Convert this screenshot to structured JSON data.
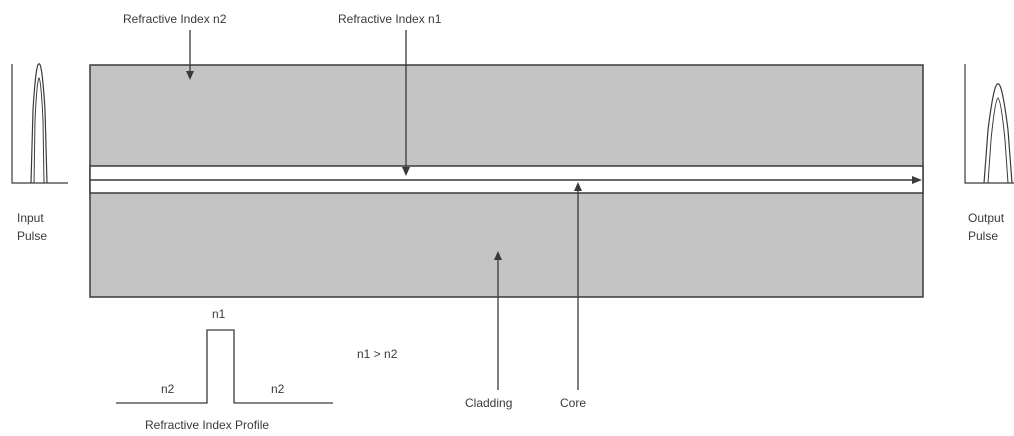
{
  "labels": {
    "refractive_index_n2": "Refractive Index n2",
    "refractive_index_n1": "Refractive Index n1",
    "input_pulse_line1": "Input",
    "input_pulse_line2": "Pulse",
    "output_pulse_line1": "Output",
    "output_pulse_line2": "Pulse",
    "profile_n1": "n1",
    "profile_n2_left": "n2",
    "profile_n2_right": "n2",
    "profile_title": "Refractive Index Profile",
    "inequality": "n1 > n2",
    "cladding": "Cladding",
    "core": "Core"
  },
  "colors": {
    "cladding_fill": "#c4c4c4",
    "core_fill": "#ffffff",
    "stroke": "#3a3a3a"
  }
}
